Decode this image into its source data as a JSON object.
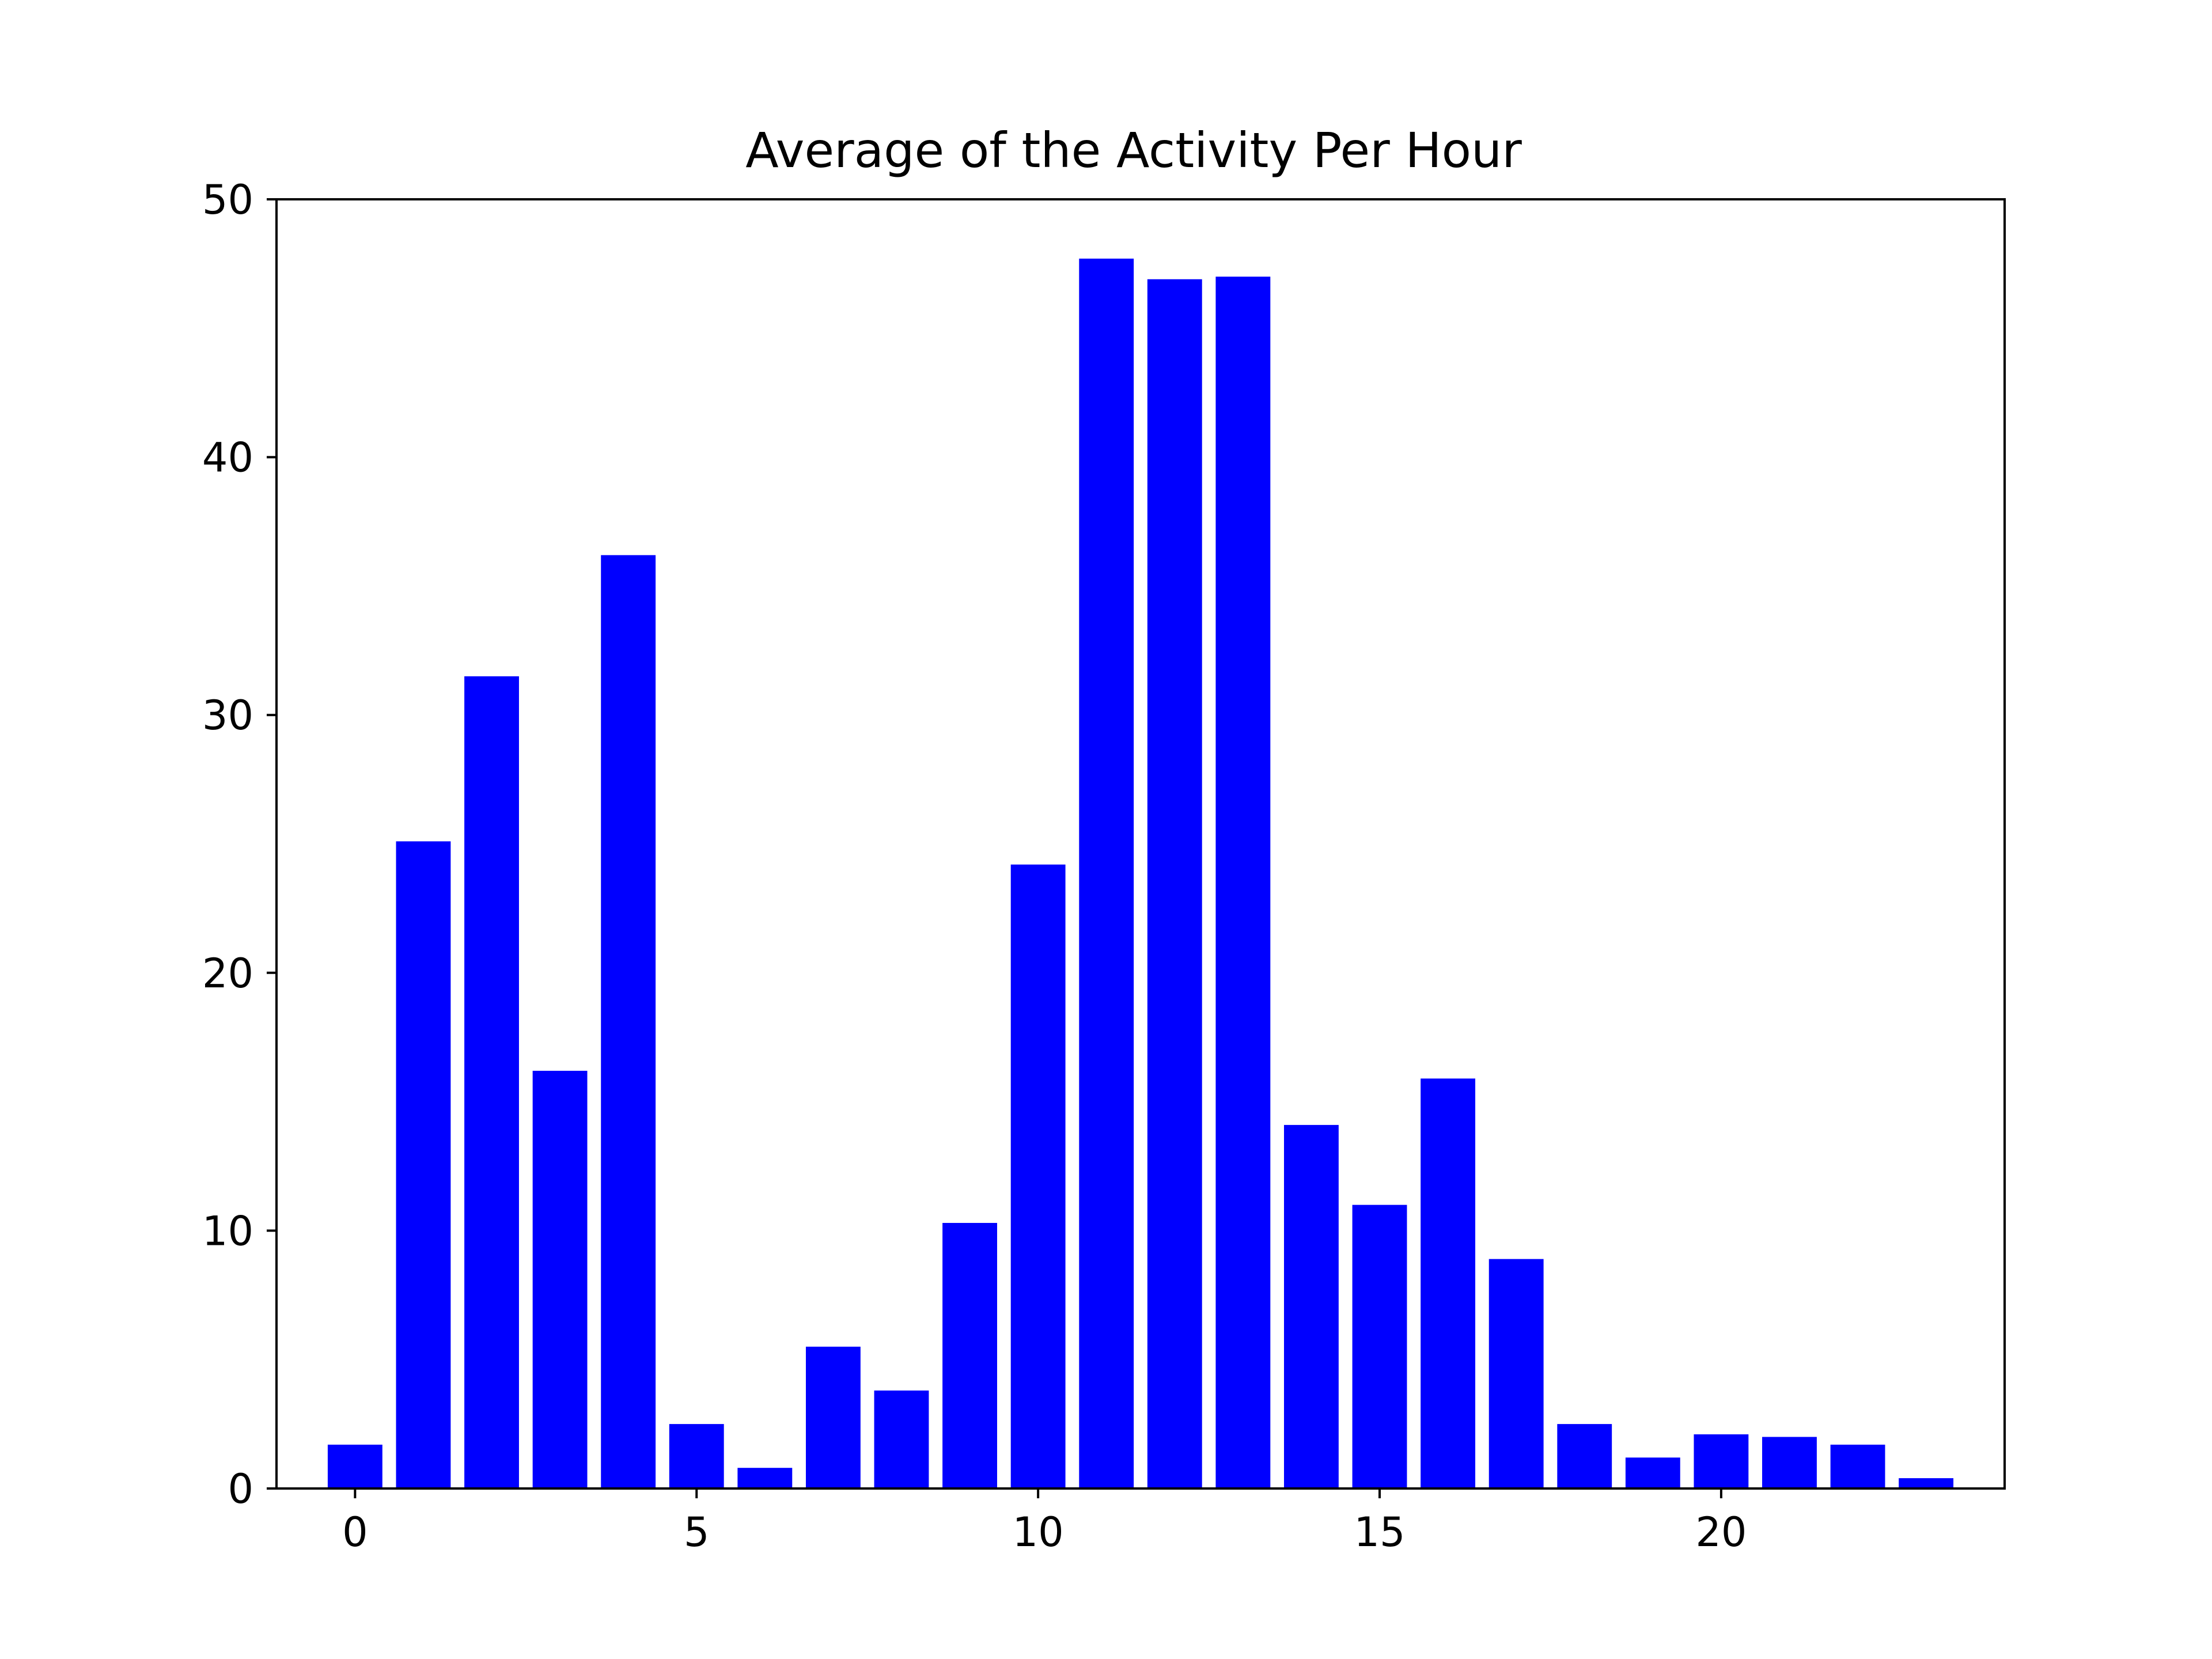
{
  "chart_data": {
    "type": "bar",
    "title": "Average of the Activity Per Hour",
    "xlabel": "",
    "ylabel": "",
    "x": [
      0,
      1,
      2,
      3,
      4,
      5,
      6,
      7,
      8,
      9,
      10,
      11,
      12,
      13,
      14,
      15,
      16,
      17,
      18,
      19,
      20,
      21,
      22,
      23
    ],
    "values": [
      1.7,
      25.1,
      31.5,
      16.2,
      36.2,
      2.5,
      0.8,
      5.5,
      3.8,
      10.3,
      24.2,
      47.7,
      46.9,
      47.0,
      14.1,
      11.0,
      15.9,
      8.9,
      2.5,
      1.2,
      2.1,
      2.0,
      1.7,
      0.4
    ],
    "xlim": [
      -1.15,
      24.15
    ],
    "ylim": [
      0,
      50
    ],
    "xticks": [
      0,
      5,
      10,
      15,
      20
    ],
    "yticks": [
      0,
      10,
      20,
      30,
      40,
      50
    ],
    "bar_color": "#0000ff",
    "grid": false,
    "legend": "none"
  }
}
